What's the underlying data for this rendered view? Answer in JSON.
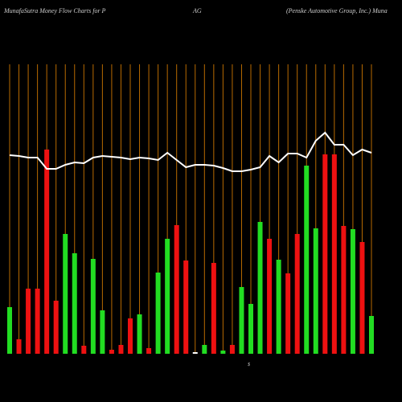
{
  "chart_data": {
    "type": "bar",
    "title_left": "MunafaSutra  Money  Flow  Charts for P",
    "title_mid": "AG",
    "title_right": "(Penske   Automotive   Group,   Inc.) Muna",
    "axis_mark": "$",
    "categories": [
      null,
      null,
      null,
      null,
      null,
      null,
      null,
      null,
      null,
      null,
      null,
      null,
      null,
      null,
      null,
      null,
      null,
      null,
      null,
      null,
      null,
      null,
      null,
      null,
      null,
      null,
      null,
      null,
      null,
      null,
      null,
      null,
      null,
      null,
      null,
      null,
      null,
      null,
      null,
      null
    ],
    "bars": {
      "values": [
        58,
        18,
        81,
        81,
        254,
        66,
        149,
        125,
        10,
        118,
        54,
        5,
        11,
        44,
        49,
        7,
        101,
        143,
        160,
        116,
        2,
        11,
        113,
        4,
        11,
        83,
        62,
        164,
        143,
        117,
        100,
        149,
        234,
        156,
        248,
        248,
        159,
        155,
        139,
        47
      ],
      "colors": [
        "#22dd22",
        "#ee1111",
        "#ee1111",
        "#ee1111",
        "#ee1111",
        "#ee1111",
        "#22dd22",
        "#22dd22",
        "#ee1111",
        "#22dd22",
        "#22dd22",
        "#ee1111",
        "#ee1111",
        "#ee1111",
        "#22dd22",
        "#ee1111",
        "#22dd22",
        "#22dd22",
        "#ee1111",
        "#ee1111",
        "#ffffff",
        "#22dd22",
        "#ee1111",
        "#22dd22",
        "#ee1111",
        "#22dd22",
        "#22dd22",
        "#22dd22",
        "#ee1111",
        "#22dd22",
        "#ee1111",
        "#ee1111",
        "#22dd22",
        "#22dd22",
        "#ee1111",
        "#ee1111",
        "#ee1111",
        "#22dd22",
        "#ee1111",
        "#22dd22"
      ]
    },
    "line": {
      "color": "#ffffff",
      "values": [
        247,
        246,
        244,
        244,
        230,
        230,
        235,
        238,
        237,
        244,
        246,
        245,
        244,
        242,
        244,
        243,
        241,
        250,
        241,
        232,
        235,
        235,
        234,
        231,
        227,
        227,
        229,
        232,
        246,
        238,
        249,
        249,
        244,
        265,
        275,
        260,
        260,
        247,
        254,
        250
      ]
    },
    "ylim": [
      0,
      440
    ],
    "grid": true,
    "grid_color": "#b86a00"
  }
}
